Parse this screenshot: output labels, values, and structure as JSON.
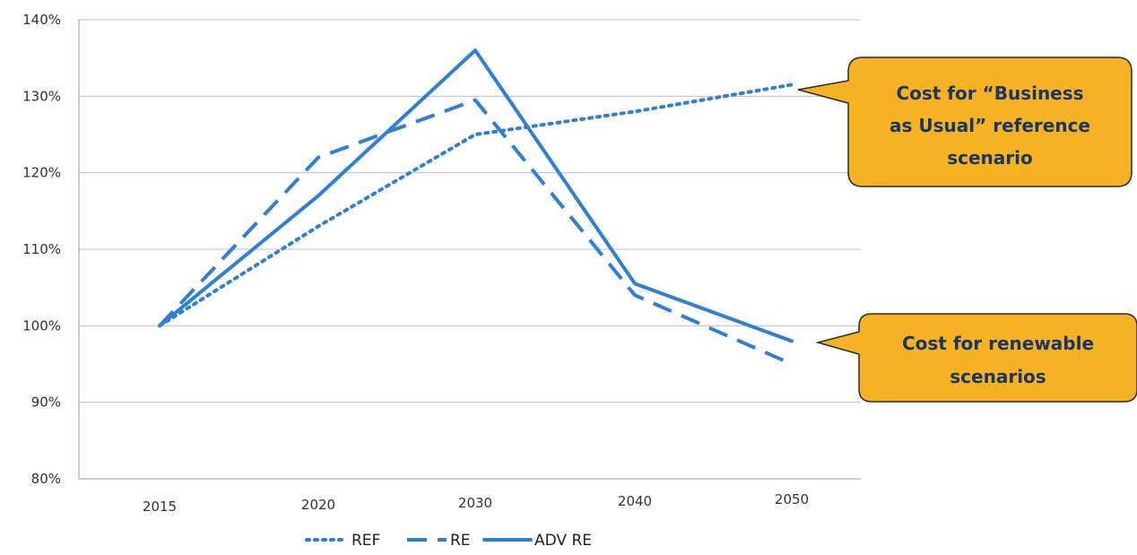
{
  "chart_data": {
    "type": "line",
    "categories": [
      "2015",
      "2020",
      "2030",
      "2040",
      "2050"
    ],
    "series": [
      {
        "name": "REF",
        "values": [
          100,
          113,
          125,
          128,
          131.5
        ],
        "style": "dotted",
        "color": "#2f7fd6"
      },
      {
        "name": "RE",
        "values": [
          100,
          122,
          129.5,
          104,
          95
        ],
        "style": "dashed",
        "color": "#2f7fd6"
      },
      {
        "name": "ADV RE",
        "values": [
          100,
          117,
          136,
          105.5,
          98
        ],
        "style": "solid",
        "color": "#2f7fd6"
      }
    ],
    "y_unit": "%",
    "ylim": [
      80,
      140
    ],
    "yticks": [
      "80%",
      "90%",
      "100%",
      "110%",
      "120%",
      "130%",
      "140%"
    ],
    "grid": "horizontal, light purple",
    "legend_position": "bottom-center",
    "annotations": [
      {
        "text_lines": [
          "Cost for “Business",
          "as Usual” reference",
          "scenario"
        ],
        "points_to": "REF",
        "at": "2050"
      },
      {
        "text_lines": [
          "Cost for renewable",
          "scenarios"
        ],
        "points_to": "ADV RE",
        "at": "2050"
      }
    ],
    "callout_color": "#f5b323"
  }
}
